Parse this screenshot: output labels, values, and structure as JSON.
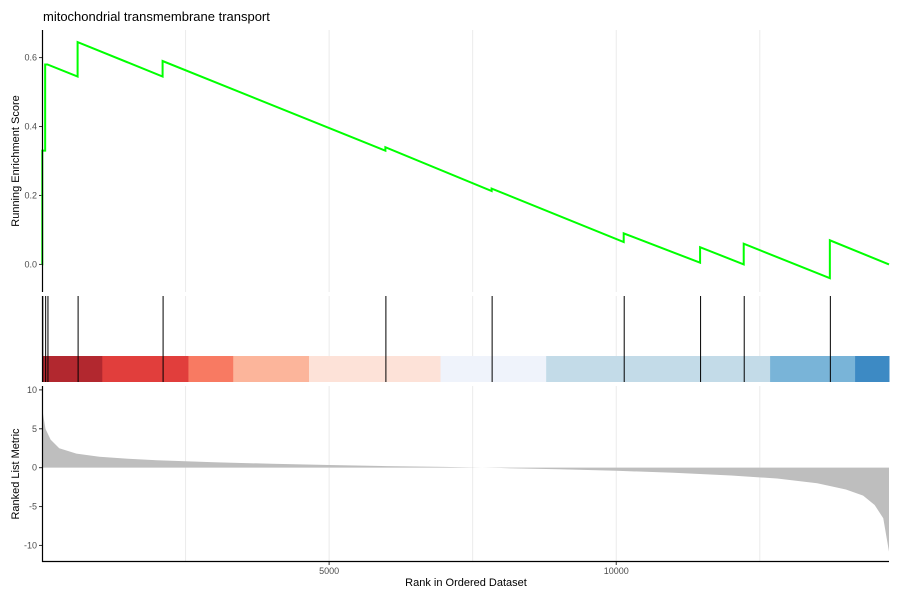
{
  "chart_data": {
    "type": "line",
    "title": "mitochondrial transmembrane transport",
    "xlabel": "Rank in Ordered Dataset",
    "x_ticks": [
      5000,
      10000
    ],
    "x_tick_labels": [
      "5000",
      "10000"
    ],
    "xlim": [
      0,
      14750
    ],
    "grid": true,
    "es_panel": {
      "ylabel": "Running Enrichment Score",
      "ylim": [
        -0.08,
        0.68
      ],
      "y_ticks": [
        0.0,
        0.2,
        0.4,
        0.6
      ],
      "y_tick_labels": [
        "0.0",
        "0.2",
        "0.4",
        "0.6"
      ],
      "line_color": "#00ff00",
      "series": [
        {
          "x": [
            0,
            5,
            5,
            55,
            55,
            95,
            95,
            620,
            620,
            2100,
            2100,
            5980,
            5980,
            7830,
            7830,
            10130,
            10130,
            11460,
            11460,
            12220,
            12220,
            13720,
            13720,
            14750
          ],
          "y": [
            0.0,
            0.0,
            0.33,
            0.33,
            0.58,
            0.58,
            0.58,
            0.545,
            0.645,
            0.545,
            0.59,
            0.33,
            0.34,
            0.213,
            0.22,
            0.065,
            0.09,
            0.005,
            0.05,
            0.0,
            0.06,
            -0.04,
            0.07,
            0.0
          ]
        }
      ]
    },
    "hit_positions": [
      5,
      55,
      95,
      620,
      2100,
      5980,
      7830,
      10130,
      11460,
      12220,
      13720
    ],
    "rank_color_bar": [
      {
        "start": 0,
        "end": 1050,
        "color": "#b2282f"
      },
      {
        "start": 1050,
        "end": 2550,
        "color": "#e13e3c"
      },
      {
        "start": 2550,
        "end": 3330,
        "color": "#f87a62"
      },
      {
        "start": 3330,
        "end": 4650,
        "color": "#fcb59b"
      },
      {
        "start": 4650,
        "end": 6940,
        "color": "#fde2d8"
      },
      {
        "start": 6940,
        "end": 8780,
        "color": "#eff3fb"
      },
      {
        "start": 8780,
        "end": 12680,
        "color": "#c3dbe8"
      },
      {
        "start": 12680,
        "end": 14160,
        "color": "#79b4d8"
      },
      {
        "start": 14160,
        "end": 14750,
        "color": "#3d8ac4"
      }
    ],
    "ranked_metric_panel": {
      "ylabel": "Ranked List Metric",
      "ylim": [
        -12,
        10.5
      ],
      "y_ticks": [
        -10,
        -5,
        0,
        5,
        10
      ],
      "y_tick_labels": [
        "-10",
        "-5",
        "0",
        "5",
        "10"
      ],
      "fill_color": "#bebebe",
      "series": [
        {
          "x": [
            0,
            20,
            60,
            150,
            300,
            600,
            1000,
            1500,
            2000,
            3000,
            4000,
            5000,
            6000,
            7000,
            8000,
            9000,
            10000,
            11000,
            12000,
            12800,
            13500,
            14000,
            14300,
            14500,
            14650,
            14750
          ],
          "y": [
            8.2,
            6.8,
            5.0,
            3.6,
            2.5,
            1.8,
            1.4,
            1.15,
            0.95,
            0.7,
            0.5,
            0.35,
            0.2,
            0.1,
            -0.05,
            -0.2,
            -0.4,
            -0.65,
            -1.0,
            -1.4,
            -2.0,
            -2.8,
            -3.6,
            -4.8,
            -6.5,
            -10.8
          ]
        }
      ]
    }
  }
}
